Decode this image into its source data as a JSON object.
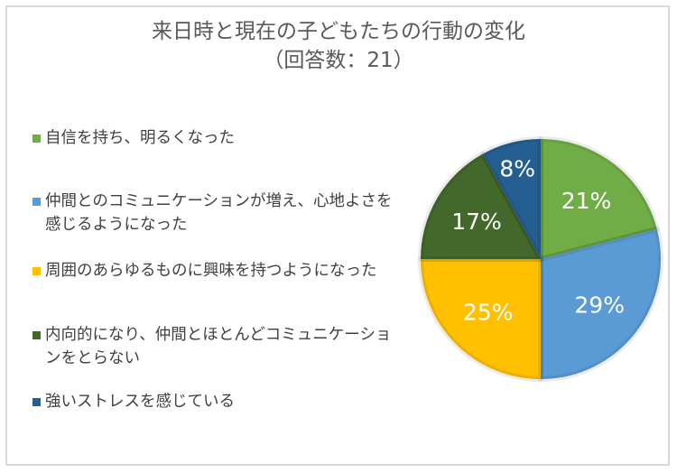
{
  "title": {
    "line1": "来日時と現在の子どもたちの行動の変化",
    "line2": "（回答数：21）"
  },
  "legend": [
    {
      "label": "自信を持ち、明るくなった",
      "color": "#70ad47"
    },
    {
      "label": "仲間とのコミュニケーションが増え、心地よさを感じるようになった",
      "color": "#5b9bd5"
    },
    {
      "label": "周囲のあらゆるものに興味を持つようになった",
      "color": "#ffc000"
    },
    {
      "label": "内向的になり、仲間とほとんどコミュニケーションをとらない",
      "color": "#43682b"
    },
    {
      "label": "強いストレスを感じている",
      "color": "#255e91"
    }
  ],
  "slices": [
    {
      "label": "21%"
    },
    {
      "label": "29%"
    },
    {
      "label": "25%"
    },
    {
      "label": "17%"
    },
    {
      "label": "8%"
    }
  ],
  "chart_data": {
    "type": "pie",
    "title": "来日時と現在の子どもたちの行動の変化（回答数：21）",
    "categories": [
      "自信を持ち、明るくなった",
      "仲間とのコミュニケーションが増え、心地よさを感じるようになった",
      "周囲のあらゆるものに興味を持つようになった",
      "内向的になり、仲間とほとんどコミュニケーションをとらない",
      "強いストレスを感じている"
    ],
    "values": [
      21,
      29,
      25,
      17,
      8
    ],
    "unit": "%",
    "colors": [
      "#70ad47",
      "#5b9bd5",
      "#ffc000",
      "#43682b",
      "#255e91"
    ],
    "legend_position": "left",
    "start_angle": "12 o'clock, clockwise",
    "n_respondents": 21
  }
}
